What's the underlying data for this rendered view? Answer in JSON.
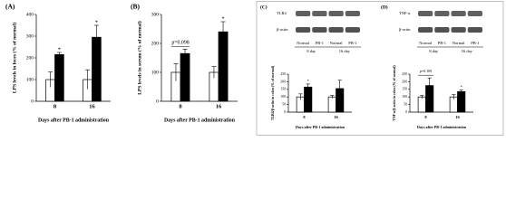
{
  "chart_data": [
    {
      "type": "bar",
      "title": "(A)",
      "ylabel": "LPS levels in feces (% of normal)",
      "xlabel": "Days after PB-1 administration",
      "categories": [
        "8",
        "16"
      ],
      "series": [
        {
          "color": "#ffffff",
          "values": [
            100,
            100
          ],
          "errors": [
            35,
            45
          ]
        },
        {
          "color": "#000000",
          "values": [
            215,
            295
          ],
          "errors": [
            10,
            55
          ]
        }
      ],
      "annotations": [
        "*",
        "*"
      ],
      "ylim": [
        0,
        400
      ],
      "yticks": [
        0,
        100,
        200,
        300,
        400
      ]
    },
    {
      "type": "bar",
      "title": "(B)",
      "ylabel": "LPS levels in serum (% of normal)",
      "xlabel": "Days after PB-1 administration",
      "categories": [
        "8",
        "16"
      ],
      "series": [
        {
          "color": "#ffffff",
          "values": [
            100,
            100
          ],
          "errors": [
            30,
            20
          ]
        },
        {
          "color": "#000000",
          "values": [
            165,
            240
          ],
          "errors": [
            15,
            35
          ]
        }
      ],
      "annotations": [
        "p=0.098",
        "*"
      ],
      "ylim": [
        0,
        300
      ],
      "yticks": [
        0,
        100,
        200,
        300
      ]
    },
    {
      "type": "bar",
      "title": "(C)",
      "ylabel": "TLR4/β-actin in colon (% of normal)",
      "xlabel": "Days after PB-1 administration",
      "categories": [
        "8",
        "16"
      ],
      "blot": {
        "bands": [
          "TLR4",
          "β-actin"
        ],
        "groups": [
          "Normal",
          "PB-1",
          "Normal",
          "PB-1"
        ],
        "days": [
          "8 day",
          "16 day"
        ]
      },
      "series": [
        {
          "color": "#ffffff",
          "values": [
            100,
            100
          ],
          "errors": [
            20,
            10
          ]
        },
        {
          "color": "#000000",
          "values": [
            165,
            155
          ],
          "errors": [
            20,
            55
          ]
        }
      ],
      "annotations": [
        "*",
        null
      ],
      "ylim": [
        0,
        250
      ],
      "yticks": [
        0,
        50,
        100,
        150,
        200,
        250
      ]
    },
    {
      "type": "bar",
      "title": "(D)",
      "ylabel": "TNF-α/β-actin in colon (% of normal)",
      "xlabel": "Days after PB-1 administration",
      "categories": [
        "8",
        "16"
      ],
      "blot": {
        "bands": [
          "TNF-α",
          "β-actin"
        ],
        "groups": [
          "Normal",
          "PB-1",
          "Normal",
          "PB-1"
        ],
        "days": [
          "8 day",
          "16 day"
        ]
      },
      "series": [
        {
          "color": "#ffffff",
          "values": [
            100,
            100
          ],
          "errors": [
            10,
            15
          ]
        },
        {
          "color": "#000000",
          "values": [
            175,
            135
          ],
          "errors": [
            50,
            10
          ]
        }
      ],
      "annotations": [
        "p=0.109",
        "*"
      ],
      "ylim": [
        0,
        250
      ],
      "yticks": [
        0,
        50,
        100,
        150,
        200,
        250
      ]
    }
  ]
}
